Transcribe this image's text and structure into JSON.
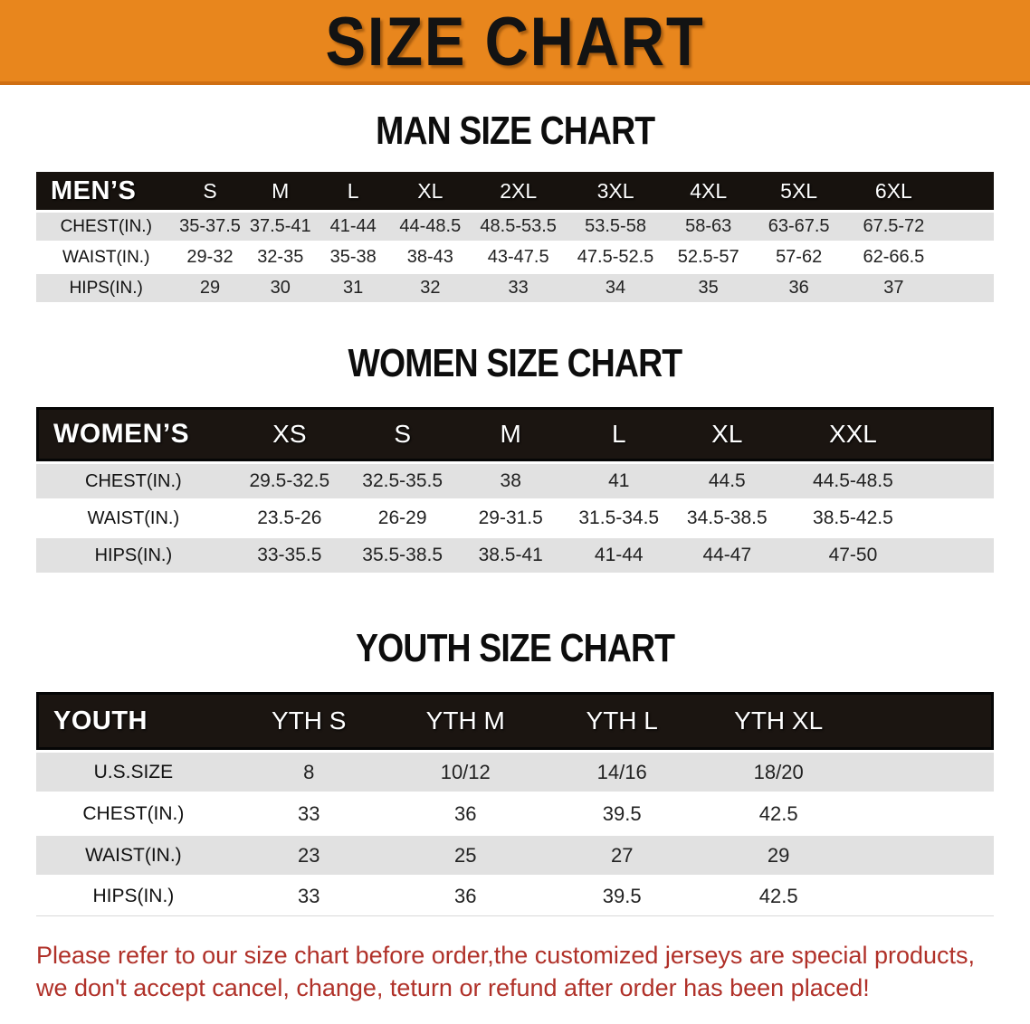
{
  "banner": {
    "title": "SIZE CHART"
  },
  "colors": {
    "banner_orange": "#E8861D",
    "banner_bottom_edge": "#CF6F12",
    "table_header_black": "#17120E",
    "row_gray": "#E1E1E1",
    "disclaimer_red": "#B03129"
  },
  "man": {
    "title": "MAN SIZE CHART",
    "table": {
      "corner": "MEN’S",
      "sizes": [
        "S",
        "M",
        "L",
        "XL",
        "2XL",
        "3XL",
        "4XL",
        "5XL",
        "6XL"
      ],
      "rows": [
        {
          "label": "CHEST(IN.)",
          "values": [
            "35-37.5",
            "37.5-41",
            "41-44",
            "44-48.5",
            "48.5-53.5",
            "53.5-58",
            "58-63",
            "63-67.5",
            "67.5-72"
          ]
        },
        {
          "label": "WAIST(IN.)",
          "values": [
            "29-32",
            "32-35",
            "35-38",
            "38-43",
            "43-47.5",
            "47.5-52.5",
            "52.5-57",
            "57-62",
            "62-66.5"
          ]
        },
        {
          "label": "HIPS(IN.)",
          "values": [
            "29",
            "30",
            "31",
            "32",
            "33",
            "34",
            "35",
            "36",
            "37"
          ]
        }
      ]
    }
  },
  "women": {
    "title": "WOMEN SIZE CHART",
    "table": {
      "corner": "WOMEN’S",
      "sizes": [
        "XS",
        "S",
        "M",
        "L",
        "XL",
        "XXL"
      ],
      "rows": [
        {
          "label": "CHEST(IN.)",
          "values": [
            "29.5-32.5",
            "32.5-35.5",
            "38",
            "41",
            "44.5",
            "44.5-48.5"
          ]
        },
        {
          "label": "WAIST(IN.)",
          "values": [
            "23.5-26",
            "26-29",
            "29-31.5",
            "31.5-34.5",
            "34.5-38.5",
            "38.5-42.5"
          ]
        },
        {
          "label": "HIPS(IN.)",
          "values": [
            "33-35.5",
            "35.5-38.5",
            "38.5-41",
            "41-44",
            "44-47",
            "47-50"
          ]
        }
      ]
    }
  },
  "youth": {
    "title": "YOUTH SIZE CHART",
    "table": {
      "corner": "YOUTH",
      "sizes": [
        "YTH S",
        "YTH M",
        "YTH L",
        "YTH XL"
      ],
      "rows": [
        {
          "label": "U.S.SIZE",
          "values": [
            "8",
            "10/12",
            "14/16",
            "18/20"
          ]
        },
        {
          "label": "CHEST(IN.)",
          "values": [
            "33",
            "36",
            "39.5",
            "42.5"
          ]
        },
        {
          "label": "WAIST(IN.)",
          "values": [
            "23",
            "25",
            "27",
            "29"
          ]
        },
        {
          "label": "HIPS(IN.)",
          "values": [
            "33",
            "36",
            "39.5",
            "42.5"
          ]
        }
      ]
    }
  },
  "disclaimer": {
    "line1": "Please refer to our size chart before order,the customized jerseys are special products,",
    "line2": "we don't accept cancel, change, teturn or refund after order has been placed!"
  }
}
